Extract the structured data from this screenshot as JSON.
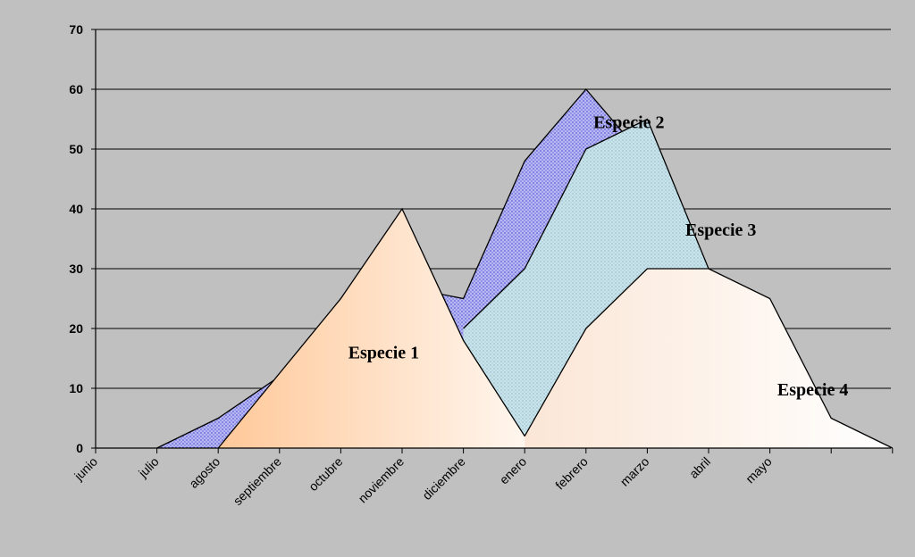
{
  "chart_data": {
    "type": "area",
    "categories": [
      "junio",
      "julio",
      "agosto",
      "septiembre",
      "octubre",
      "noviembre",
      "diciembre",
      "enero",
      "febrero",
      "marzo",
      "abril",
      "mayo"
    ],
    "ylim": [
      0,
      70
    ],
    "yticks": [
      0,
      10,
      20,
      30,
      40,
      50,
      60,
      70
    ],
    "grid": true,
    "legend": "none",
    "series": [
      {
        "name": "Especie 2",
        "points": [
          [
            1,
            0
          ],
          [
            2,
            5
          ],
          [
            3,
            12
          ],
          [
            4,
            25
          ],
          [
            5,
            27
          ],
          [
            6,
            25
          ],
          [
            7,
            48
          ],
          [
            8,
            60
          ],
          [
            9,
            48
          ],
          [
            9.7,
            30
          ],
          [
            10,
            20
          ]
        ],
        "fill": "#b8b8f4",
        "pattern": "dots",
        "pattern_color": "#4444cc"
      },
      {
        "name": "Especie 3",
        "points": [
          [
            6,
            20
          ],
          [
            7,
            30
          ],
          [
            8,
            50
          ],
          [
            9,
            55
          ],
          [
            10,
            30
          ],
          [
            11,
            15
          ]
        ],
        "fill": "#c8e4ec",
        "pattern": "dots",
        "pattern_color": "#8fb0bc"
      },
      {
        "name": "Especie 1",
        "points": [
          [
            2,
            0
          ],
          [
            4,
            25
          ],
          [
            5,
            40
          ],
          [
            6,
            18
          ],
          [
            7,
            2
          ],
          [
            8,
            0
          ]
        ],
        "gradient": [
          "#ffc899",
          "#ffffff"
        ]
      },
      {
        "name": "Especie 4",
        "points": [
          [
            7,
            2
          ],
          [
            8,
            20
          ],
          [
            9,
            30
          ],
          [
            10,
            30
          ],
          [
            11,
            25
          ],
          [
            12,
            5
          ],
          [
            13,
            0
          ]
        ],
        "gradient": [
          "#fbe6d6",
          "#ffffff"
        ]
      }
    ],
    "annotations": [
      {
        "text": "Especie 2",
        "x": 8.7,
        "y": 53.5
      },
      {
        "text": "Especie 3",
        "x": 10.2,
        "y": 35.5
      },
      {
        "text": "Especie 1",
        "x": 4.7,
        "y": 15
      },
      {
        "text": "Especie 4",
        "x": 11.7,
        "y": 8.8
      }
    ]
  }
}
